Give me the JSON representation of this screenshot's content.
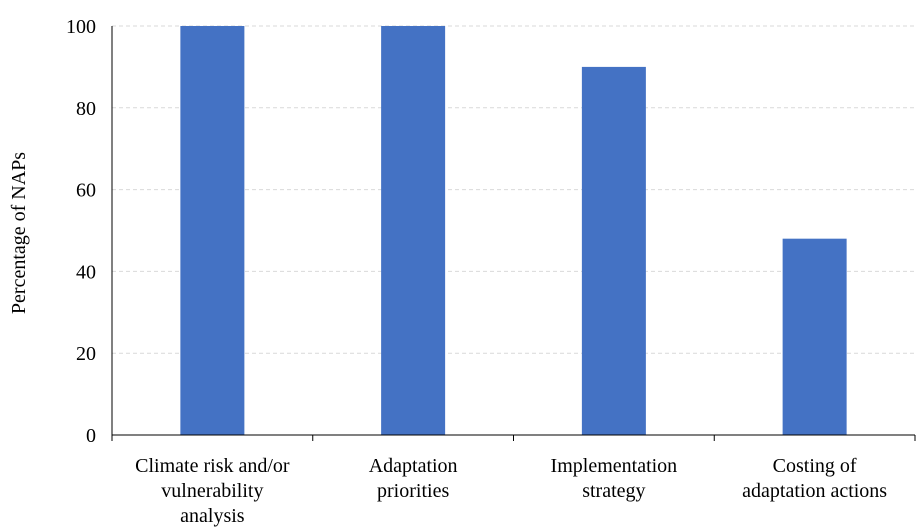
{
  "chart_data": {
    "type": "bar",
    "categories": [
      [
        "Climate risk and/or",
        "vulnerability",
        "analysis"
      ],
      [
        "Adaptation",
        "priorities"
      ],
      [
        "Implementation",
        "strategy"
      ],
      [
        "Costing of",
        "adaptation actions"
      ]
    ],
    "values": [
      100,
      100,
      90,
      48
    ],
    "title": "",
    "xlabel": "",
    "ylabel": "Percentage of NAPs",
    "ylim": [
      0,
      100
    ],
    "yticks": [
      "0",
      "20",
      "40",
      "60",
      "80",
      "100"
    ],
    "grid": "horizontal-dashed",
    "legend": "none",
    "bar_color": "#4472C4",
    "gridline_color": "#D9D9D9",
    "axis_color": "#000000"
  }
}
